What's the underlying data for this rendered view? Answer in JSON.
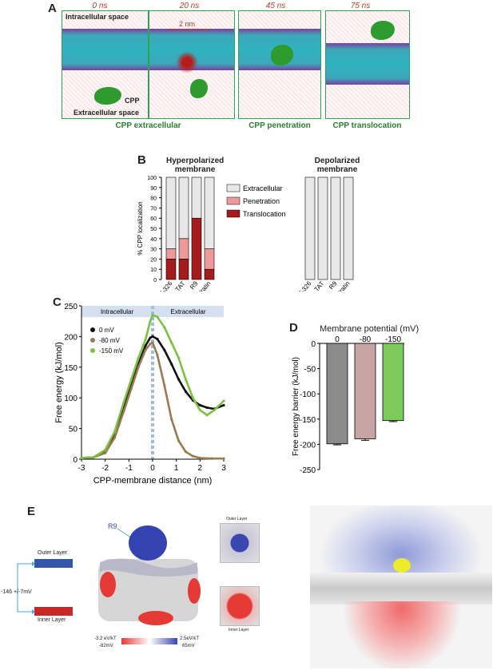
{
  "panel_A": {
    "label": "A",
    "times": [
      "0 ns",
      "20 ns",
      "45 ns",
      "75 ns"
    ],
    "intracellular": "Intracellular space",
    "extracellular": "Extracellular space",
    "cpp_tag": "CPP",
    "scale": "2 nm",
    "states": [
      "CPP extracellular",
      "CPP penetration",
      "CPP translocation"
    ],
    "colors": {
      "border": "#2ea44f",
      "peptide": "#2e9b2e",
      "time": "#c0392b"
    }
  },
  "panel_B": {
    "label": "B"
  },
  "panel_C": {
    "label": "C"
  },
  "panel_D": {
    "label": "D"
  },
  "panel_E": {
    "label": "E",
    "outer_layer": "Outer Layer",
    "inner_layer": "Inner Layer",
    "delta": "-146 +/-7mV",
    "r9": "R9",
    "scale_low": "-3.2 eV/kT",
    "scale_low_mv": "-82mV",
    "scale_high": "2.5eV/kT",
    "scale_high_mv": "65mV"
  },
  "chart_data": [
    {
      "type": "bar",
      "stacked": true,
      "title": "Hyperpolarized membrane",
      "categories": [
        "TAT-RasGAP317-326",
        "TAT",
        "R9",
        "Penetratin"
      ],
      "ylabel": "% CPP localization",
      "ylim": [
        0,
        100
      ],
      "yticks": [
        0,
        10,
        20,
        30,
        40,
        50,
        60,
        70,
        80,
        90,
        100
      ],
      "series": [
        {
          "name": "Translocation",
          "values": [
            20,
            20,
            60,
            10
          ],
          "color": "#a51c1c"
        },
        {
          "name": "Penetration",
          "values": [
            10,
            20,
            0,
            20
          ],
          "color": "#ee9a9a"
        },
        {
          "name": "Extracellular",
          "values": [
            70,
            60,
            40,
            70
          ],
          "color": "#e8e8e8"
        }
      ],
      "legend": [
        "Extracellular",
        "Penetration",
        "Translocation"
      ],
      "legend_position": "right"
    },
    {
      "type": "bar",
      "stacked": true,
      "title": "Depolarized membrane",
      "categories": [
        "TAT-RasGAP317-326",
        "TAT",
        "R9",
        "penetratin"
      ],
      "ylim": [
        0,
        100
      ],
      "series": [
        {
          "name": "Translocation",
          "values": [
            0,
            0,
            0,
            0
          ],
          "color": "#a51c1c"
        },
        {
          "name": "Penetration",
          "values": [
            0,
            0,
            0,
            0
          ],
          "color": "#ee9a9a"
        },
        {
          "name": "Extracellular",
          "values": [
            100,
            100,
            100,
            100
          ],
          "color": "#e8e8e8"
        }
      ]
    },
    {
      "type": "line",
      "xlabel": "CPP-membrane distance (nm)",
      "ylabel": "Free energy (kJ/mol)",
      "xlim": [
        -3,
        3
      ],
      "ylim": [
        0,
        250
      ],
      "xticks": [
        -3,
        -2,
        -1,
        0,
        1,
        2,
        3
      ],
      "yticks": [
        0,
        50,
        100,
        150,
        200,
        250
      ],
      "regions": [
        "Intracellular",
        "Extracellular"
      ],
      "legend_position": "top-left",
      "series": [
        {
          "name": "0 mV",
          "color": "#111111",
          "x": [
            -3,
            -2.5,
            -2,
            -1.6,
            -1.2,
            -0.9,
            -0.6,
            -0.3,
            -0.1,
            0,
            0.2,
            0.5,
            0.8,
            1.1,
            1.4,
            1.7,
            2,
            2.3,
            2.6,
            3
          ],
          "y": [
            2,
            3,
            12,
            40,
            85,
            120,
            155,
            185,
            198,
            200,
            196,
            178,
            155,
            130,
            110,
            96,
            88,
            84,
            82,
            88
          ]
        },
        {
          "name": "-80 mV",
          "color": "#9a7b4f",
          "x": [
            -3,
            -2.5,
            -2,
            -1.6,
            -1.2,
            -0.9,
            -0.6,
            -0.3,
            -0.1,
            0,
            0.2,
            0.5,
            0.8,
            1.1,
            1.4,
            1.7,
            2,
            2.5,
            3
          ],
          "y": [
            2,
            3,
            10,
            35,
            80,
            115,
            150,
            178,
            188,
            190,
            170,
            120,
            65,
            30,
            12,
            5,
            2,
            1,
            1
          ]
        },
        {
          "name": "-150 mV",
          "color": "#7dc142",
          "x": [
            -3,
            -2.5,
            -2,
            -1.6,
            -1.2,
            -0.9,
            -0.6,
            -0.3,
            -0.1,
            0,
            0.2,
            0.5,
            0.8,
            1.1,
            1.4,
            1.7,
            2,
            2.3,
            2.6,
            3
          ],
          "y": [
            2,
            3,
            15,
            45,
            95,
            130,
            165,
            195,
            225,
            235,
            232,
            215,
            190,
            165,
            130,
            100,
            80,
            72,
            80,
            95
          ]
        }
      ]
    },
    {
      "type": "bar",
      "title": "Membrane potential (mV)",
      "categories": [
        "0",
        "-80",
        "-150"
      ],
      "values": [
        -199,
        -189,
        -153
      ],
      "errors": [
        2,
        3,
        2
      ],
      "ylabel": "Free energy barrier (kJ/mol)",
      "ylim": [
        -250,
        0
      ],
      "yticks": [
        0,
        -50,
        -100,
        -150,
        -200,
        -250
      ],
      "colors": [
        "#8c8c8c",
        "#c9a4a4",
        "#7dcb5a"
      ]
    }
  ]
}
